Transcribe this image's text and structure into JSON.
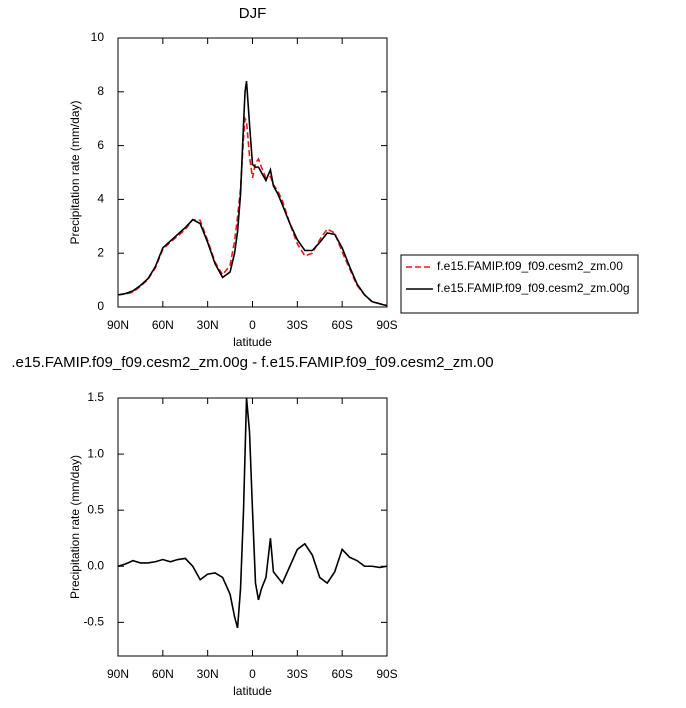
{
  "chart_data": [
    {
      "type": "line",
      "title": "DJF",
      "x_label": "latitude",
      "y_label": "Precipitation rate (mm/day)",
      "x": [
        90,
        85,
        80,
        75,
        70,
        65,
        60,
        55,
        50,
        45,
        40,
        35,
        30,
        25,
        20,
        15,
        12,
        10,
        8,
        6,
        5,
        4,
        2,
        0,
        -2,
        -4,
        -6,
        -9,
        -12,
        -14,
        -17,
        -20,
        -25,
        -30,
        -35,
        -40,
        -45,
        -50,
        -55,
        -60,
        -65,
        -70,
        -75,
        -80,
        -85,
        -90
      ],
      "series": [
        {
          "name": "f.e15.FAMIP.f09_f09.cesm2_zm.00",
          "color": "#e8191a",
          "style": "dashed",
          "values": [
            0.45,
            0.48,
            0.55,
            0.77,
            1.02,
            1.46,
            2.14,
            2.41,
            2.64,
            2.88,
            3.25,
            3.22,
            2.47,
            1.66,
            1.2,
            1.55,
            2.45,
            3.35,
            4.4,
            6.3,
            7.0,
            6.9,
            5.6,
            4.8,
            5.35,
            5.5,
            5.2,
            4.8,
            4.85,
            4.55,
            4.3,
            3.95,
            3.1,
            2.35,
            1.9,
            2.0,
            2.5,
            2.9,
            2.75,
            2.05,
            1.42,
            0.8,
            0.45,
            0.2,
            0.13,
            0.05
          ]
        },
        {
          "name": "f.e15.FAMIP.f09_f09.cesm2_zm.00g",
          "color": "#000000",
          "style": "solid",
          "values": [
            0.45,
            0.5,
            0.6,
            0.8,
            1.05,
            1.5,
            2.2,
            2.45,
            2.7,
            2.95,
            3.25,
            3.1,
            2.4,
            1.6,
            1.1,
            1.3,
            2.0,
            2.8,
            4.2,
            6.8,
            8.0,
            8.4,
            6.8,
            5.3,
            5.2,
            5.2,
            5.0,
            4.7,
            5.1,
            4.5,
            4.2,
            3.8,
            3.1,
            2.5,
            2.1,
            2.1,
            2.4,
            2.75,
            2.7,
            2.2,
            1.5,
            0.85,
            0.45,
            0.2,
            0.12,
            0.05
          ]
        }
      ],
      "xlim": [
        90,
        -90
      ],
      "xticks": [
        {
          "value": 90,
          "label": "90N"
        },
        {
          "value": 60,
          "label": "60N"
        },
        {
          "value": 30,
          "label": "30N"
        },
        0,
        {
          "value": -30,
          "label": "30S"
        },
        {
          "value": -60,
          "label": "60S"
        },
        {
          "value": -90,
          "label": "90S"
        }
      ],
      "ylim": [
        0,
        10
      ],
      "yticks": [
        0,
        2,
        4,
        6,
        8,
        10
      ],
      "grid": false,
      "legend": "right"
    },
    {
      "type": "line",
      "title": ".e15.FAMIP.f09_f09.cesm2_zm.00g - f.e15.FAMIP.f09_f09.cesm2_zm.00",
      "x_label": "latitude",
      "y_label": "Precipitation rate (mm/day)",
      "x": [
        90,
        85,
        80,
        75,
        70,
        65,
        60,
        55,
        50,
        45,
        40,
        35,
        30,
        25,
        20,
        15,
        12,
        10,
        8,
        6,
        5,
        4,
        2,
        0,
        -2,
        -4,
        -6,
        -9,
        -12,
        -14,
        -17,
        -20,
        -25,
        -30,
        -35,
        -40,
        -45,
        -50,
        -55,
        -60,
        -65,
        -70,
        -75,
        -80,
        -85,
        -90
      ],
      "values": [
        0,
        0.02,
        0.05,
        0.03,
        0.03,
        0.04,
        0.06,
        0.04,
        0.06,
        0.07,
        0.0,
        -0.12,
        -0.07,
        -0.06,
        -0.1,
        -0.25,
        -0.45,
        -0.55,
        -0.2,
        0.5,
        1.0,
        1.5,
        1.2,
        0.5,
        -0.15,
        -0.3,
        -0.2,
        -0.1,
        0.25,
        -0.05,
        -0.1,
        -0.15,
        0.0,
        0.15,
        0.2,
        0.1,
        -0.1,
        -0.15,
        -0.05,
        0.15,
        0.08,
        0.05,
        0.0,
        0.0,
        -0.01,
        0
      ],
      "color": "#000000",
      "style": "solid",
      "xlim": [
        90,
        -90
      ],
      "xticks": [
        {
          "value": 90,
          "label": "90N"
        },
        {
          "value": 60,
          "label": "60N"
        },
        {
          "value": 30,
          "label": "30N"
        },
        0,
        {
          "value": -30,
          "label": "30S"
        },
        {
          "value": -60,
          "label": "60S"
        },
        {
          "value": -90,
          "label": "90S"
        }
      ],
      "ylim": [
        -0.8,
        1.5
      ],
      "yticks": [
        -0.5,
        {
          "value": 0,
          "label": "0.0"
        },
        0.5,
        {
          "value": 1,
          "label": "1.0"
        },
        1.5
      ],
      "grid": false
    }
  ]
}
